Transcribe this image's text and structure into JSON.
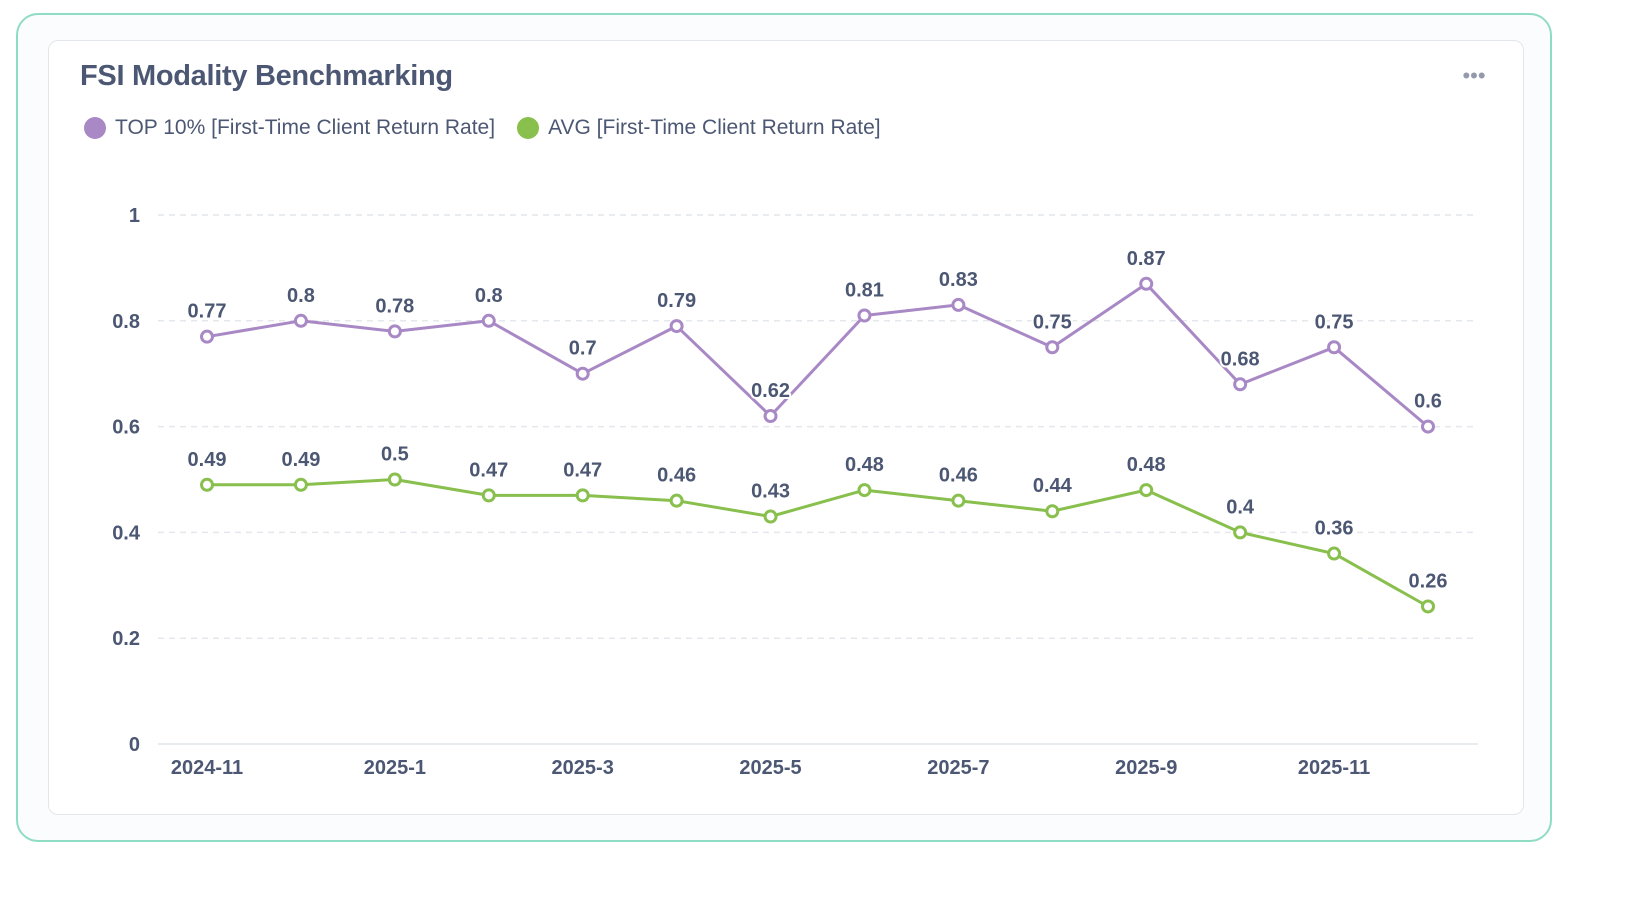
{
  "card": {
    "title": "FSI Modality Benchmarking",
    "menu_icon": "ellipsis-horizontal-icon",
    "menu_glyph": "•••"
  },
  "chart_data": {
    "type": "line",
    "title": "FSI Modality Benchmarking",
    "xlabel": "",
    "ylabel": "",
    "ylim": [
      0,
      1
    ],
    "yticks": [
      0,
      0.2,
      0.4,
      0.6,
      0.8,
      1
    ],
    "ytick_labels": [
      "0",
      "0.2",
      "0.4",
      "0.6",
      "0.8",
      "1"
    ],
    "grid": "horizontal-dashed",
    "legend_position": "top-left",
    "categories": [
      "2024-11",
      "2024-12",
      "2025-1",
      "2025-2",
      "2025-3",
      "2025-4",
      "2025-5",
      "2025-6",
      "2025-7",
      "2025-8",
      "2025-9",
      "2025-10",
      "2025-11",
      "2025-12"
    ],
    "xtick_labels": [
      "2024-11",
      "",
      "2025-1",
      "",
      "2025-3",
      "",
      "2025-5",
      "",
      "2025-7",
      "",
      "2025-9",
      "",
      "2025-11",
      ""
    ],
    "series": [
      {
        "name": "TOP 10% [First-Time Client Return Rate]",
        "color": "#a989c5",
        "values": [
          0.77,
          0.8,
          0.78,
          0.8,
          0.7,
          0.79,
          0.62,
          0.81,
          0.83,
          0.75,
          0.87,
          0.68,
          0.75,
          0.6
        ],
        "labels": [
          "0.77",
          "0.8",
          "0.78",
          "0.8",
          "0.7",
          "0.79",
          "0.62",
          "0.81",
          "0.83",
          "0.75",
          "0.87",
          "0.68",
          "0.75",
          "0.6"
        ]
      },
      {
        "name": "AVG [First-Time Client Return Rate]",
        "color": "#88bf4d",
        "values": [
          0.49,
          0.49,
          0.5,
          0.47,
          0.47,
          0.46,
          0.43,
          0.48,
          0.46,
          0.44,
          0.48,
          0.4,
          0.36,
          0.26
        ],
        "labels": [
          "0.49",
          "0.49",
          "0.5",
          "0.47",
          "0.47",
          "0.46",
          "0.43",
          "0.48",
          "0.46",
          "0.44",
          "0.48",
          "0.4",
          "0.36",
          "0.26"
        ]
      }
    ]
  }
}
